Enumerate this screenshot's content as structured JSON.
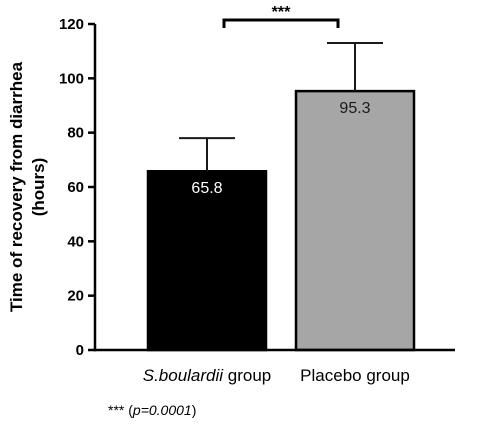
{
  "chart_data": {
    "type": "bar",
    "categories": [
      {
        "italic": "S.boulardii",
        "rest": " group"
      },
      {
        "italic": "",
        "rest": "Placebo group"
      }
    ],
    "values": [
      65.8,
      95.3
    ],
    "error_upper": [
      78,
      113
    ],
    "data_labels": [
      "65.8",
      "95.3"
    ],
    "bar_colors": [
      "#000000",
      "#a6a6a6"
    ],
    "data_label_colors": [
      "#ffffff",
      "#1a1a1a"
    ],
    "ylabel_lines": [
      "Time of recovery from diarrhea",
      "(hours)"
    ],
    "xlabel": "",
    "ylim": [
      0,
      120
    ],
    "yticks": [
      0,
      20,
      40,
      60,
      80,
      100,
      120
    ],
    "ytick_labels": [
      "0",
      "20",
      "40",
      "60",
      "80",
      "100",
      "120"
    ],
    "grid": false,
    "significance": {
      "from": 0,
      "to": 1,
      "label": "***"
    }
  },
  "footnote": {
    "stars": "***",
    "open": " (",
    "pvalue": "p=0.0001",
    "close": ")"
  }
}
